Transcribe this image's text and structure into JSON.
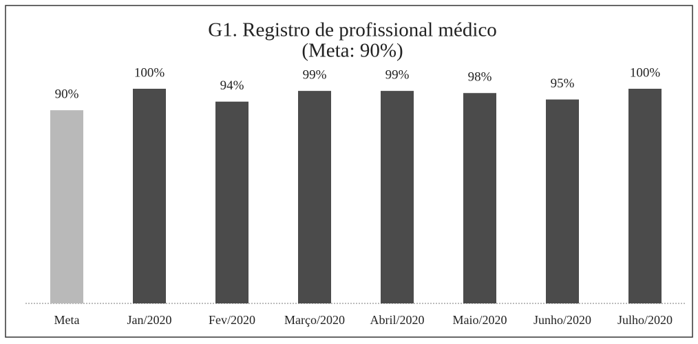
{
  "chart_data": {
    "type": "bar",
    "title": "G1. Registro de profissional médico",
    "subtitle": "(Meta: 90%)",
    "categories": [
      "Meta",
      "Jan/2020",
      "Fev/2020",
      "Março/2020",
      "Abril/2020",
      "Maio/2020",
      "Junho/2020",
      "Julho/2020"
    ],
    "values": [
      90,
      100,
      94,
      99,
      99,
      98,
      95,
      100
    ],
    "value_labels": [
      "90%",
      "100%",
      "94%",
      "99%",
      "99%",
      "98%",
      "95%",
      "100%"
    ],
    "colors": [
      "#b9b9b9",
      "#4b4b4b",
      "#4b4b4b",
      "#4b4b4b",
      "#4b4b4b",
      "#4b4b4b",
      "#4b4b4b",
      "#4b4b4b"
    ],
    "ylim": [
      0,
      100
    ]
  }
}
